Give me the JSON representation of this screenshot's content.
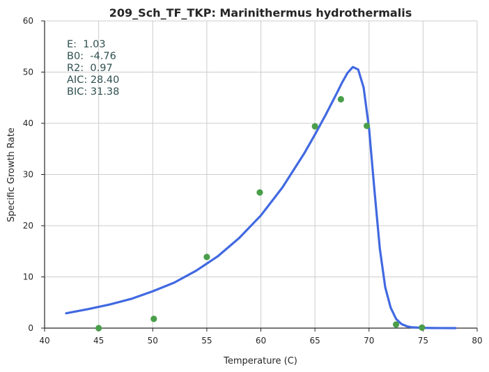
{
  "chart_data": {
    "type": "scatter",
    "title": "209_Sch_TF_TKP: Marinithermus hydrothermalis",
    "xlabel": "Temperature (C)",
    "ylabel": "Specific Growth Rate",
    "xlim": [
      40,
      80
    ],
    "ylim": [
      0,
      60
    ],
    "xticks": [
      40,
      45,
      50,
      55,
      60,
      65,
      70,
      75,
      80
    ],
    "yticks": [
      0,
      10,
      20,
      30,
      40,
      50,
      60
    ],
    "grid": true,
    "annotations": [
      "E:  1.03",
      "B0:  -4.76",
      "R2:  0.97",
      "AIC: 28.40",
      "BIC: 31.38"
    ],
    "colors": {
      "points": "#4a9e4a",
      "curve": "#4169e1",
      "grid": "#cccccc",
      "axis": "#262626",
      "annotation": "#2f4f4f"
    },
    "series": [
      {
        "type": "scatter",
        "x": [
          45.0,
          50.1,
          55.0,
          59.9,
          65.0,
          67.4,
          69.8,
          72.5,
          74.9
        ],
        "y": [
          0.0,
          1.8,
          13.9,
          26.5,
          39.4,
          44.7,
          39.5,
          0.7,
          0.1
        ]
      },
      {
        "type": "line",
        "x": [
          42,
          44,
          46,
          48,
          50,
          52,
          54,
          56,
          58,
          60,
          62,
          64,
          65,
          66,
          67,
          67.5,
          68,
          68.5,
          69,
          69.5,
          70,
          70.5,
          71,
          71.5,
          72,
          72.5,
          73,
          73.5,
          74,
          75,
          76,
          78
        ],
        "y": [
          2.9,
          3.7,
          4.6,
          5.7,
          7.2,
          8.9,
          11.2,
          14.0,
          17.6,
          22.0,
          27.5,
          34.1,
          37.8,
          41.7,
          45.8,
          47.9,
          49.8,
          51.0,
          50.5,
          47.0,
          39.0,
          27.0,
          15.5,
          8.0,
          4.0,
          1.8,
          0.8,
          0.35,
          0.15,
          0.05,
          0.02,
          0.0
        ]
      }
    ]
  }
}
